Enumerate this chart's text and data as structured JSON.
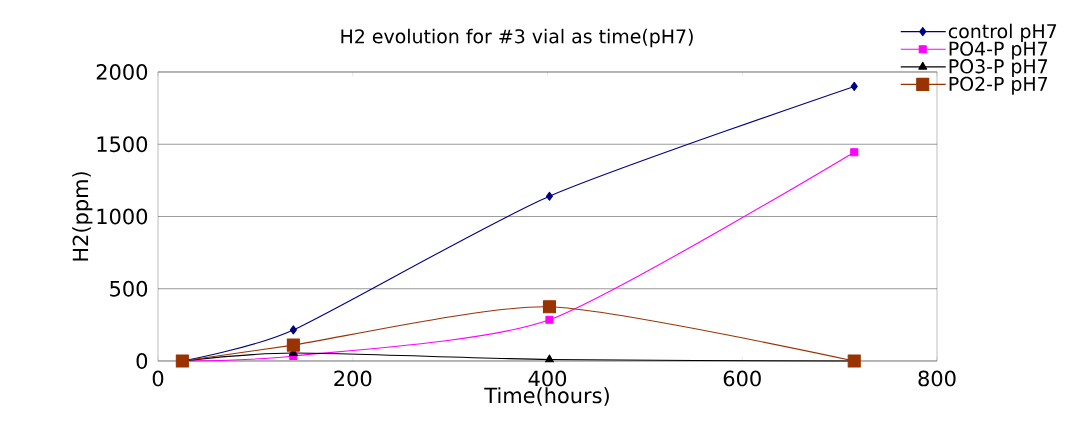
{
  "chart_data": {
    "type": "line",
    "title": "H2 evolution for #3 vial as time(pH7)",
    "xlabel": "Time(hours)",
    "ylabel": "H2(ppm)",
    "x": [
      25,
      139,
      402,
      715
    ],
    "series": [
      {
        "name": "control pH7",
        "color": "#000080",
        "marker": "diamond",
        "values": [
          0,
          215,
          1140,
          1900
        ]
      },
      {
        "name": "PO4-P pH7",
        "color": "#ff00ff",
        "marker": "square",
        "values": [
          0,
          35,
          285,
          1445
        ]
      },
      {
        "name": "PO3-P pH7",
        "color": "#000000",
        "marker": "triangle",
        "values": [
          0,
          55,
          10,
          0
        ]
      },
      {
        "name": "PO2-P pH7",
        "color": "#993300",
        "marker": "square",
        "values": [
          0,
          110,
          375,
          0
        ]
      }
    ],
    "xlim": [
      0,
      800
    ],
    "xticks": [
      0,
      200,
      400,
      600,
      800
    ],
    "ylim": [
      0,
      2000
    ],
    "yticks": [
      0,
      500,
      1000,
      1500,
      2000
    ],
    "grid": "y",
    "legend": "top right",
    "line_style": "solid"
  }
}
